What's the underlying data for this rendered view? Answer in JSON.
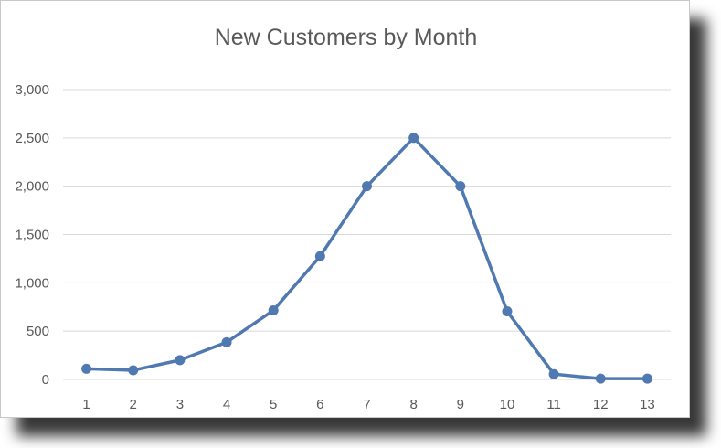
{
  "chart_data": {
    "type": "line",
    "title": "New Customers by Month",
    "xlabel": "",
    "ylabel": "",
    "categories": [
      "1",
      "2",
      "3",
      "4",
      "5",
      "6",
      "7",
      "8",
      "9",
      "10",
      "11",
      "12",
      "13"
    ],
    "series": [
      {
        "values": [
          110,
          95,
          200,
          385,
          715,
          1275,
          2000,
          2500,
          2000,
          705,
          55,
          8,
          8
        ]
      }
    ],
    "ylim": [
      0,
      3000
    ],
    "yticks": [
      "0",
      "500",
      "1,000",
      "1,500",
      "2,000",
      "2,500",
      "3,000"
    ],
    "grid": true,
    "line_color": "#4f79b0",
    "grid_color": "#d9d9d9"
  }
}
